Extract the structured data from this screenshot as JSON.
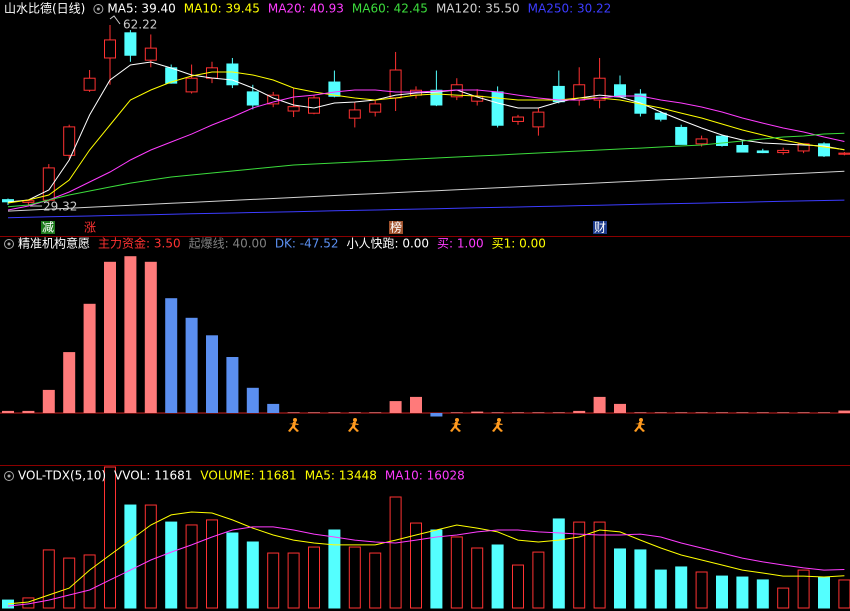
{
  "chart_data": [
    {
      "type": "candlestick",
      "title": "山水比德(日线)",
      "ylim": [
        23.65,
        66.8
      ],
      "up_color": "#ff3232",
      "down_color": "#54ffff",
      "open": [
        30.3,
        29.8,
        30.2,
        38.4,
        50.3,
        56.2,
        60.8,
        55.8,
        54.4,
        50.0,
        52.5,
        55.1,
        50.0,
        47.8,
        46.5,
        46.1,
        51.8,
        45.2,
        46.3,
        48.9,
        49.4,
        50.3,
        49.1,
        48.3,
        50.0,
        44.6,
        43.6,
        51.0,
        48.5,
        48.5,
        51.3,
        49.6,
        46.1,
        43.5,
        40.5,
        41.9,
        40.2,
        39.2,
        38.9,
        39.2,
        40.5,
        38.6
      ],
      "high": [
        30.5,
        30.3,
        36.8,
        44.0,
        54.0,
        62.22,
        61.3,
        60.5,
        55.0,
        55.0,
        55.5,
        56.2,
        51.3,
        50.0,
        50.7,
        49.5,
        53.9,
        48.1,
        48.5,
        57.3,
        51.0,
        53.9,
        52.5,
        50.5,
        51.0,
        45.8,
        47.0,
        53.9,
        54.5,
        56.2,
        53.0,
        50.5,
        46.5,
        44.0,
        42.0,
        42.2,
        41.0,
        39.6,
        39.8,
        40.5,
        40.8,
        39.0
      ],
      "low": [
        29.32,
        29.4,
        29.9,
        37.8,
        50.0,
        51.3,
        55.5,
        54.5,
        51.5,
        49.7,
        51.6,
        50.7,
        46.8,
        47.2,
        45.4,
        45.9,
        49.0,
        43.5,
        45.5,
        46.5,
        48.8,
        47.4,
        48.5,
        47.5,
        43.5,
        44.0,
        42.0,
        47.9,
        47.5,
        47.0,
        49.0,
        45.5,
        44.6,
        40.4,
        40.0,
        40.0,
        39.0,
        38.8,
        38.5,
        38.8,
        38.1,
        38.4
      ],
      "close": [
        29.9,
        30.1,
        36.1,
        43.6,
        52.5,
        59.5,
        56.7,
        58.0,
        51.6,
        52.5,
        54.4,
        51.3,
        47.6,
        49.4,
        47.3,
        48.9,
        49.2,
        46.7,
        47.8,
        54.0,
        50.3,
        47.6,
        51.3,
        49.2,
        43.9,
        45.4,
        46.3,
        48.2,
        51.3,
        52.5,
        49.1,
        46.1,
        45.0,
        40.4,
        41.4,
        40.2,
        39.0,
        38.9,
        39.3,
        40.5,
        38.3,
        38.8
      ],
      "series": [
        {
          "name": "MA5",
          "legend": "MA5: 39.40",
          "color": "#ffffff",
          "values": [
            29.86,
            30.23,
            32.06,
            37.54,
            45.77,
            52.17,
            54.91,
            55.46,
            54.36,
            53.08,
            52.53,
            52.17,
            50.71,
            48.88,
            47.6,
            47.05,
            47.96,
            48.15,
            48.51,
            49.42,
            49.79,
            49.97,
            50.34,
            49.06,
            47.96,
            47.05,
            47.05,
            48.15,
            48.88,
            49.42,
            49.06,
            47.96,
            46.32,
            44.85,
            43.39,
            42.11,
            41.2,
            40.65,
            40.47,
            40.29,
            40.1,
            39.4
          ]
        },
        {
          "name": "MA10",
          "legend": "MA10: 39.45",
          "color": "#ffff00",
          "values": [
            29.68,
            30.23,
            31.14,
            33.88,
            39.37,
            43.94,
            48.51,
            50.34,
            51.8,
            52.9,
            53.63,
            53.63,
            53.08,
            52.17,
            50.71,
            49.97,
            49.42,
            48.88,
            48.51,
            48.88,
            49.42,
            49.61,
            49.42,
            49.24,
            48.88,
            48.51,
            48.51,
            48.51,
            48.88,
            48.88,
            48.51,
            47.78,
            47.05,
            46.13,
            45.22,
            44.12,
            43.03,
            42.11,
            41.2,
            40.47,
            39.92,
            39.45
          ]
        },
        {
          "name": "MA20",
          "legend": "MA20: 40.93",
          "color": "#ff3cff",
          "values": [
            28.4,
            29.13,
            30.23,
            31.69,
            33.52,
            35.35,
            37.54,
            39.37,
            40.83,
            42.29,
            43.94,
            45.4,
            47.05,
            48.15,
            49.06,
            49.42,
            49.97,
            50.34,
            50.34,
            49.97,
            49.97,
            50.15,
            50.34,
            50.34,
            49.97,
            49.42,
            48.88,
            48.51,
            48.51,
            48.88,
            49.24,
            49.24,
            48.51,
            47.96,
            47.23,
            46.32,
            45.22,
            44.3,
            43.39,
            42.66,
            41.75,
            40.93
          ]
        },
        {
          "name": "MA60",
          "legend": "MA60: 42.45",
          "color": "#3cdc3c",
          "values": [
            29.0,
            29.31,
            30.23,
            31.14,
            31.87,
            32.6,
            33.33,
            33.88,
            34.43,
            34.8,
            35.16,
            35.53,
            35.9,
            36.26,
            36.63,
            36.81,
            36.99,
            37.18,
            37.36,
            37.54,
            37.72,
            37.91,
            38.09,
            38.27,
            38.45,
            38.64,
            38.82,
            39.0,
            39.19,
            39.37,
            39.55,
            39.73,
            39.92,
            40.1,
            40.29,
            40.65,
            41.02,
            41.38,
            41.75,
            41.93,
            42.3,
            42.45
          ]
        },
        {
          "name": "MA120",
          "legend": "MA120: 35.50",
          "color": "#d2d2d2",
          "values": [
            28.2,
            28.38,
            28.56,
            28.73,
            28.91,
            29.09,
            29.27,
            29.45,
            29.62,
            29.8,
            29.98,
            30.16,
            30.34,
            30.51,
            30.69,
            30.87,
            31.05,
            31.23,
            31.4,
            31.58,
            31.76,
            31.94,
            32.12,
            32.29,
            32.47,
            32.65,
            32.83,
            33.01,
            33.18,
            33.36,
            33.54,
            33.72,
            33.9,
            34.07,
            34.25,
            34.43,
            34.61,
            34.79,
            34.96,
            35.14,
            35.32,
            35.5
          ]
        },
        {
          "name": "MA250",
          "legend": "MA250: 30.22",
          "color": "#3c3cff",
          "values": [
            27.0,
            27.08,
            27.16,
            27.24,
            27.31,
            27.39,
            27.47,
            27.55,
            27.63,
            27.71,
            27.79,
            27.86,
            27.94,
            28.02,
            28.1,
            28.18,
            28.26,
            28.33,
            28.41,
            28.49,
            28.57,
            28.65,
            28.73,
            28.81,
            28.88,
            28.96,
            29.04,
            29.12,
            29.2,
            29.28,
            29.36,
            29.44,
            29.51,
            29.59,
            29.67,
            29.75,
            29.83,
            29.91,
            29.99,
            30.06,
            30.14,
            30.22
          ]
        }
      ],
      "annotations": [
        "62.22",
        "29.32"
      ],
      "tags": [
        "减",
        "涨",
        "榜",
        "财"
      ]
    },
    {
      "type": "bar",
      "title": "精准机构意愿",
      "ylim": [
        -20,
        230
      ],
      "legend": [
        {
          "text": "主力资金: 3.50",
          "color": "#ff3232"
        },
        {
          "text": "起爆线: 40.00",
          "color": "#808080"
        },
        {
          "text": "DK: -47.52",
          "color": "#5b8ff0"
        },
        {
          "text": "小人快跑: 0.00",
          "color": "#ffffff"
        },
        {
          "text": "买: 1.00",
          "color": "#ff3cff"
        },
        {
          "text": "买1: 0.00",
          "color": "#ffff00"
        }
      ],
      "values": [
        3,
        3,
        33,
        87,
        156,
        216,
        224,
        216,
        164,
        136,
        111,
        80,
        36,
        13,
        1,
        1,
        1,
        1,
        1,
        17,
        23,
        -5,
        1,
        2,
        1,
        1,
        1,
        1,
        3,
        23,
        13,
        1,
        1,
        1,
        1,
        1,
        1,
        1,
        1,
        1,
        1,
        3.5
      ],
      "colors": [
        "#ff7a7a",
        "#ff7a7a",
        "#ff7a7a",
        "#ff7a7a",
        "#ff7a7a",
        "#ff7a7a",
        "#ff7a7a",
        "#ff7a7a",
        "#5b8ff0",
        "#5b8ff0",
        "#5b8ff0",
        "#5b8ff0",
        "#5b8ff0",
        "#5b8ff0",
        "#ff7a7a",
        "#ff7a7a",
        "#ff7a7a",
        "#ff7a7a",
        "#ff7a7a",
        "#ff7a7a",
        "#ff7a7a",
        "#5b8ff0",
        "#ff7a7a",
        "#ff7a7a",
        "#ff7a7a",
        "#ff7a7a",
        "#ff7a7a",
        "#ff7a7a",
        "#ff7a7a",
        "#ff7a7a",
        "#ff7a7a",
        "#ff7a7a",
        "#ff7a7a",
        "#ff7a7a",
        "#ff7a7a",
        "#ff7a7a",
        "#ff7a7a",
        "#ff7a7a",
        "#ff7a7a",
        "#ff7a7a",
        "#ff7a7a",
        "#ff7a7a"
      ]
    },
    {
      "type": "volume",
      "title": "VOL-TDX(5,10)",
      "ylim": [
        0,
        60000
      ],
      "legend": [
        {
          "text": "VVOL: 11681",
          "color": "#ffffff"
        }
      ],
      "volume_legend": "VOLUME: 11681",
      "volume_legend_color": "#ffff00",
      "values": [
        3300,
        4200,
        24200,
        20800,
        22100,
        58750,
        42900,
        42900,
        35800,
        34600,
        36700,
        31250,
        27500,
        22900,
        22900,
        25400,
        32500,
        25400,
        22900,
        46250,
        35400,
        32500,
        29600,
        25000,
        26250,
        17900,
        23300,
        37100,
        35800,
        35800,
        24600,
        24200,
        15800,
        17100,
        15000,
        13300,
        12900,
        11700,
        8300,
        15800,
        12900,
        11681
      ],
      "series": [
        {
          "name": "MA5",
          "legend": "MA5: 13448",
          "color": "#ffff00",
          "values": [
            1700,
            2500,
            5400,
            8300,
            15800,
            22100,
            28300,
            34600,
            38800,
            40000,
            39600,
            36700,
            33300,
            30400,
            28300,
            27100,
            26300,
            26300,
            26300,
            28300,
            30400,
            32500,
            34600,
            33300,
            31700,
            28300,
            27500,
            28300,
            29600,
            32500,
            31700,
            28300,
            25000,
            22100,
            20000,
            17900,
            15800,
            14600,
            13300,
            13300,
            12900,
            13448
          ]
        },
        {
          "name": "MA10",
          "legend": "MA10: 16028",
          "color": "#ff3cff",
          "values": [
            800,
            1700,
            3300,
            5400,
            7500,
            11700,
            15800,
            20000,
            23300,
            26300,
            29600,
            32500,
            33800,
            33800,
            32500,
            30800,
            29600,
            28300,
            27500,
            27100,
            28300,
            29600,
            30400,
            31700,
            32500,
            32500,
            31700,
            31300,
            30800,
            30400,
            30400,
            30800,
            29600,
            27100,
            25000,
            22900,
            20800,
            19200,
            17900,
            16700,
            15800,
            16028
          ]
        }
      ]
    }
  ]
}
